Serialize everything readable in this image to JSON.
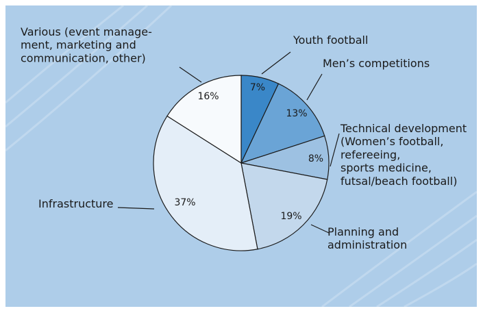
{
  "chart_data": {
    "type": "pie",
    "title": "",
    "slices": [
      {
        "value": 7,
        "value_label": "7%",
        "color": "#3a87c8",
        "label_lines": [
          "Youth football"
        ]
      },
      {
        "value": 13,
        "value_label": "13%",
        "color": "#6aa4d6",
        "label_lines": [
          "Men’s competitions"
        ]
      },
      {
        "value": 8,
        "value_label": "8%",
        "color": "#9dc1e2",
        "label_lines": [
          "Technical development",
          "(Women’s football,",
          "refereeing,",
          "sports medicine,",
          "futsal/beach football)"
        ]
      },
      {
        "value": 19,
        "value_label": "19%",
        "color": "#c3d8ec",
        "label_lines": [
          "Planning and",
          "administration"
        ]
      },
      {
        "value": 37,
        "value_label": "37%",
        "color": "#e4eef8",
        "label_lines": [
          "Infrastructure"
        ]
      },
      {
        "value": 16,
        "value_label": "16%",
        "color": "#f7fafd",
        "label_lines": [
          "Various (event manage-",
          "ment, marketing and",
          "communication, other)"
        ]
      }
    ],
    "legend": "none",
    "background_color": "#aecde9"
  }
}
